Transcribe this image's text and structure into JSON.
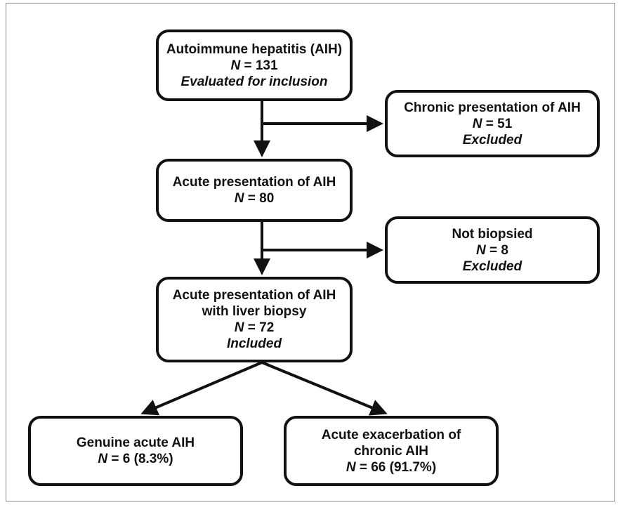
{
  "boxes": {
    "aih": {
      "title": "Autoimmune hepatitis (AIH)",
      "n_label": "N",
      "n_value": " = 131",
      "note": "Evaluated for inclusion"
    },
    "chronic": {
      "title": "Chronic presentation of AIH",
      "n_label": "N",
      "n_value": " = 51",
      "note": "Excluded"
    },
    "acute": {
      "title": "Acute presentation of AIH",
      "n_label": "N",
      "n_value": " = 80"
    },
    "not_biopsied": {
      "title": "Not biopsied",
      "n_label": "N",
      "n_value": " = 8",
      "note": "Excluded"
    },
    "biopsy": {
      "title_line1": "Acute presentation of AIH",
      "title_line2": "with liver biopsy",
      "n_label": "N",
      "n_value": " = 72",
      "note": "Included"
    },
    "genuine": {
      "title": "Genuine acute AIH",
      "n_label": "N",
      "n_value": " = 6 (8.3%)"
    },
    "exacerbation": {
      "title_line1": "Acute exacerbation of",
      "title_line2": "chronic AIH",
      "n_label": "N",
      "n_value": " = 66 (91.7%)"
    }
  },
  "colors": {
    "stroke": "#111111",
    "background": "#ffffff",
    "frame": "#8a8a8a"
  }
}
